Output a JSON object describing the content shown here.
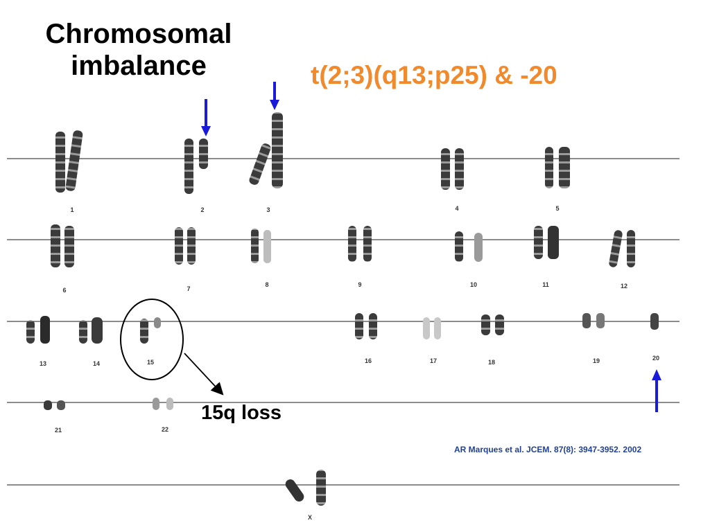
{
  "title": "Chromosomal imbalance",
  "subtitle": "t(2;3)(q13;p25) & -20",
  "annotation": "15q loss",
  "citation": "AR Marques  et al. JCEM. 87(8): 3947-3952. 2002",
  "chromosome_labels": [
    "1",
    "2",
    "3",
    "4",
    "5",
    "6",
    "7",
    "8",
    "9",
    "10",
    "11",
    "12",
    "13",
    "14",
    "15",
    "16",
    "17",
    "18",
    "19",
    "20",
    "21",
    "22",
    "X"
  ],
  "colors": {
    "subtitle": "#f08a2c",
    "arrow": "#1a1adb",
    "citation": "#1f3f99"
  }
}
